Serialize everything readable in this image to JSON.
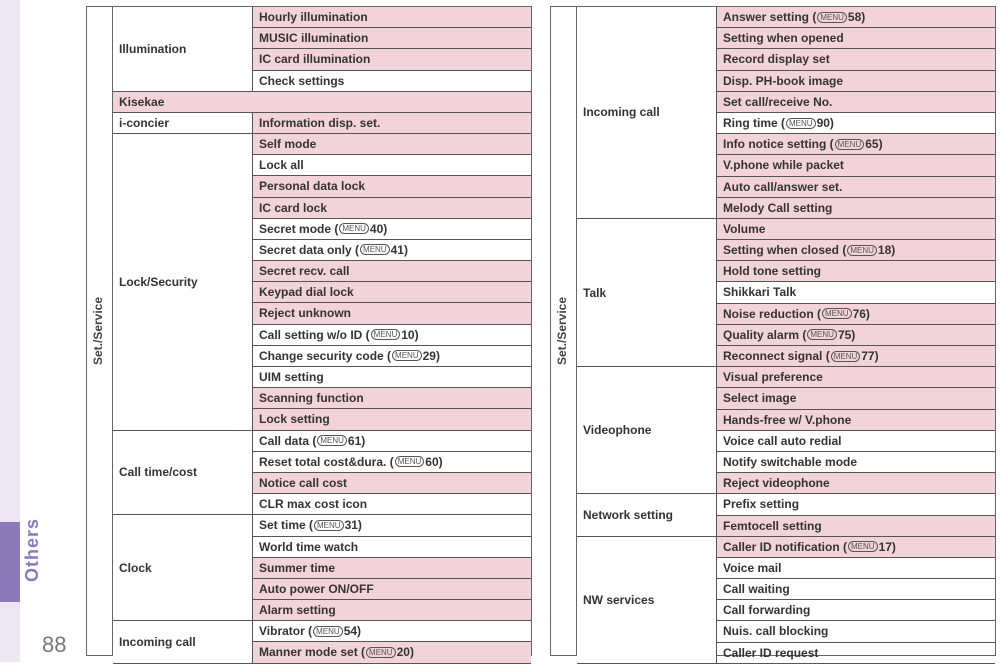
{
  "sidebar_label": "Others",
  "page_number": "88",
  "vlabel": "Set./Service",
  "menu_glyph": "MENU",
  "left": [
    {
      "category": "Illumination",
      "items": [
        {
          "text": "Hourly illumination",
          "pink": true
        },
        {
          "text": "MUSIC illumination",
          "pink": true
        },
        {
          "text": "IC card illumination",
          "pink": true
        },
        {
          "text": "Check settings",
          "pink": false
        }
      ]
    },
    {
      "full": true,
      "text": "Kisekae"
    },
    {
      "category": "i-concier",
      "items": [
        {
          "text": "Information disp. set.",
          "pink": true
        }
      ]
    },
    {
      "category": "Lock/Security",
      "items": [
        {
          "text": "Self mode",
          "pink": true
        },
        {
          "text": "Lock all",
          "pink": false
        },
        {
          "text": "Personal data lock",
          "pink": true
        },
        {
          "text": "IC card lock",
          "pink": true
        },
        {
          "text": "Secret mode (",
          "glyph": true,
          "after": "40)",
          "pink": false
        },
        {
          "text": "Secret data only (",
          "glyph": true,
          "after": "41)",
          "pink": false
        },
        {
          "text": "Secret recv. call",
          "pink": true
        },
        {
          "text": "Keypad dial lock",
          "pink": true
        },
        {
          "text": "Reject unknown",
          "pink": true
        },
        {
          "text": "Call setting w/o ID (",
          "glyph": true,
          "after": "10)",
          "pink": false
        },
        {
          "text": "Change security code (",
          "glyph": true,
          "after": "29)",
          "pink": false
        },
        {
          "text": "UIM setting",
          "pink": false
        },
        {
          "text": "Scanning function",
          "pink": true
        },
        {
          "text": "Lock setting",
          "pink": true
        }
      ]
    },
    {
      "category": "Call time/cost",
      "items": [
        {
          "text": "Call data (",
          "glyph": true,
          "after": "61)",
          "pink": false
        },
        {
          "text": "Reset total cost&dura. (",
          "glyph": true,
          "after": "60)",
          "pink": false
        },
        {
          "text": "Notice call cost",
          "pink": true
        },
        {
          "text": "CLR max cost icon",
          "pink": false
        }
      ]
    },
    {
      "category": "Clock",
      "items": [
        {
          "text": "Set time (",
          "glyph": true,
          "after": "31)",
          "pink": false
        },
        {
          "text": "World time watch",
          "pink": false
        },
        {
          "text": "Summer time",
          "pink": true
        },
        {
          "text": "Auto power ON/OFF",
          "pink": true
        },
        {
          "text": "Alarm setting",
          "pink": true
        }
      ]
    },
    {
      "category": "Incoming call",
      "items": [
        {
          "text": "Vibrator (",
          "glyph": true,
          "after": "54)",
          "pink": false
        },
        {
          "text": "Manner mode set (",
          "glyph": true,
          "after": "20)",
          "pink": true
        }
      ]
    }
  ],
  "right": [
    {
      "category": "Incoming call",
      "items": [
        {
          "text": "Answer setting (",
          "glyph": true,
          "after": "58)",
          "pink": true
        },
        {
          "text": "Setting when opened",
          "pink": true
        },
        {
          "text": "Record display set",
          "pink": true
        },
        {
          "text": "Disp. PH-book image",
          "pink": true
        },
        {
          "text": "Set call/receive No.",
          "pink": true
        },
        {
          "text": "Ring time (",
          "glyph": true,
          "after": "90)",
          "pink": false
        },
        {
          "text": "Info notice setting (",
          "glyph": true,
          "after": "65)",
          "pink": true
        },
        {
          "text": "V.phone while packet",
          "pink": true
        },
        {
          "text": "Auto call/answer set.",
          "pink": true
        },
        {
          "text": "Melody Call setting",
          "pink": true
        }
      ]
    },
    {
      "category": "Talk",
      "items": [
        {
          "text": "Volume",
          "pink": true
        },
        {
          "text": "Setting when closed (",
          "glyph": true,
          "after": "18)",
          "pink": true
        },
        {
          "text": "Hold tone setting",
          "pink": true
        },
        {
          "text": "Shikkari Talk",
          "pink": false
        },
        {
          "text": "Noise reduction (",
          "glyph": true,
          "after": "76)",
          "pink": true
        },
        {
          "text": "Quality alarm (",
          "glyph": true,
          "after": "75)",
          "pink": true
        },
        {
          "text": "Reconnect signal (",
          "glyph": true,
          "after": "77)",
          "pink": true
        }
      ]
    },
    {
      "category": "Videophone",
      "items": [
        {
          "text": "Visual preference",
          "pink": true
        },
        {
          "text": "Select image",
          "pink": true
        },
        {
          "text": "Hands-free w/ V.phone",
          "pink": true
        },
        {
          "text": "Voice call auto redial",
          "pink": false
        },
        {
          "text": "Notify switchable mode",
          "pink": false
        },
        {
          "text": "Reject videophone",
          "pink": true
        }
      ]
    },
    {
      "category": "Network setting",
      "items": [
        {
          "text": "Prefix setting",
          "pink": false
        },
        {
          "text": "Femtocell setting",
          "pink": true
        }
      ]
    },
    {
      "category": "NW services",
      "items": [
        {
          "text": "Caller ID notification (",
          "glyph": true,
          "after": "17)",
          "pink": true
        },
        {
          "text": "Voice mail",
          "pink": false
        },
        {
          "text": "Call waiting",
          "pink": false
        },
        {
          "text": "Call forwarding",
          "pink": false
        },
        {
          "text": "Nuis. call blocking",
          "pink": false
        },
        {
          "text": "Caller ID request",
          "pink": false
        }
      ]
    }
  ]
}
